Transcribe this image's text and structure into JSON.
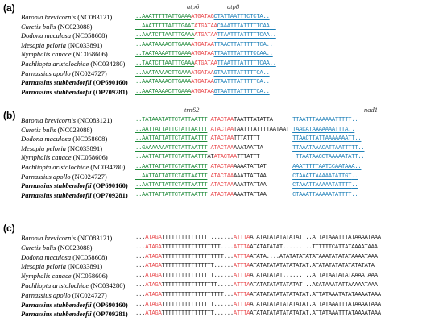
{
  "panels": [
    {
      "label": "(a)",
      "headers": [
        {
          "text": "atp6"
        },
        {
          "text": "atp8"
        }
      ],
      "rows": [
        {
          "genus": "Baronia brevicornis",
          "acc": "(NC083121)",
          "bold": false,
          "seq": [
            {
              "t": "..",
              "c": "g"
            },
            {
              "t": "AAATTTTTATTGAAA",
              "c": "g"
            },
            {
              "t": "ATGATAG",
              "c": "r"
            },
            {
              "t": "CTATTAATTTCTCTA",
              "c": "b"
            },
            {
              "t": "..",
              "c": "b"
            }
          ]
        },
        {
          "genus": "Curetis bulis",
          "acc": "(NC023088)",
          "bold": false,
          "seq": [
            {
              "t": "..",
              "c": "g"
            },
            {
              "t": "AAATTTTTATTTGAAT",
              "c": "g"
            },
            {
              "t": "ATGATAA",
              "c": "r"
            },
            {
              "t": "CAAATTTATTTTTCAA",
              "c": "b"
            },
            {
              "t": "..",
              "c": "b"
            }
          ]
        },
        {
          "genus": "Dodona maculosa",
          "acc": "(NC058608)",
          "bold": false,
          "seq": [
            {
              "t": "..",
              "c": "g"
            },
            {
              "t": "AAATCTTAATTTGAAA",
              "c": "g"
            },
            {
              "t": "ATGATAA",
              "c": "r"
            },
            {
              "t": "TTAATTTATTTTTCAA",
              "c": "b"
            },
            {
              "t": "..",
              "c": "b"
            }
          ]
        },
        {
          "genus": "Mesapia peloria",
          "acc": "(NC033891)",
          "bold": false,
          "seq": [
            {
              "t": "..",
              "c": "g"
            },
            {
              "t": "AAATAAAACTTGAAA",
              "c": "g"
            },
            {
              "t": "ATGATAA",
              "c": "r"
            },
            {
              "t": "TTAACTTATTTTTTCA",
              "c": "b"
            },
            {
              "t": "..",
              "c": "b"
            }
          ]
        },
        {
          "genus": "Nymphalis canace",
          "acc": "(NC058606)",
          "bold": false,
          "seq": [
            {
              "t": "..",
              "c": "g"
            },
            {
              "t": "TAATAAAATTTGAAA",
              "c": "g"
            },
            {
              "t": "ATGATAA",
              "c": "r"
            },
            {
              "t": "TTAATTTATTTTCCAA",
              "c": "b"
            },
            {
              "t": "..",
              "c": "b"
            }
          ]
        },
        {
          "genus": "Pachliopta aristolochiae",
          "acc": "(NC034280)",
          "bold": false,
          "seq": [
            {
              "t": "..",
              "c": "g"
            },
            {
              "t": "TAATCTTAATTTGAAA",
              "c": "g"
            },
            {
              "t": "ATGATAA",
              "c": "r"
            },
            {
              "t": "TTAATTTATTTTTCAA",
              "c": "b"
            },
            {
              "t": "..",
              "c": "b"
            }
          ]
        },
        {
          "genus": "Parnassius apollo",
          "acc": "(NC024727)",
          "bold": false,
          "seq": [
            {
              "t": "..",
              "c": "g"
            },
            {
              "t": "AAATAAAACTTGAAA",
              "c": "g"
            },
            {
              "t": "ATGATAA",
              "c": "r"
            },
            {
              "t": "GTAATTTATTTTTCA",
              "c": "b"
            },
            {
              "t": "..",
              "c": "b"
            }
          ]
        },
        {
          "genus": "Parnassius stubbendorfii",
          "acc": "(OP690160)",
          "bold": true,
          "seq": [
            {
              "t": "..",
              "c": "g"
            },
            {
              "t": "AAATAAAACTTGAAA",
              "c": "g"
            },
            {
              "t": "ATGATAA",
              "c": "r"
            },
            {
              "t": "GTAATTTATTTTTCA",
              "c": "b"
            },
            {
              "t": "..",
              "c": "b"
            }
          ]
        },
        {
          "genus": "Parnassius stubbendorfii",
          "acc": "(OP709281)",
          "bold": true,
          "seq": [
            {
              "t": "..",
              "c": "g"
            },
            {
              "t": "AAATAAAACTTGAAA",
              "c": "g"
            },
            {
              "t": "ATGATAA",
              "c": "r"
            },
            {
              "t": "GTAATTTATTTTTCA",
              "c": "b"
            },
            {
              "t": "..",
              "c": "b"
            }
          ]
        }
      ]
    },
    {
      "label": "(b)",
      "headers": [
        {
          "text": "trnS2"
        },
        {
          "text": "nad1"
        }
      ],
      "rows": [
        {
          "genus": "Baronia brevicornis",
          "acc": "(NC083121)",
          "bold": false,
          "seq": [
            {
              "t": "..",
              "c": "g"
            },
            {
              "t": "TATAAATATTCTATTAATTT",
              "c": "g"
            },
            {
              "t": " ",
              "c": "k"
            },
            {
              "t": "ATACTAA",
              "c": "r"
            },
            {
              "t": "TAATTTATATTA",
              "c": "k"
            },
            {
              "t": "      ",
              "c": "k"
            },
            {
              "t": "TTAATTTAAAAAATTTTT",
              "c": "b"
            },
            {
              "t": "..",
              "c": "b"
            }
          ]
        },
        {
          "genus": "Curetis bulis",
          "acc": "(NC023088)",
          "bold": false,
          "seq": [
            {
              "t": "..",
              "c": "g"
            },
            {
              "t": "AATTATTATTCTATTAATTT",
              "c": "g"
            },
            {
              "t": " ",
              "c": "k"
            },
            {
              "t": "ATACTAA",
              "c": "r"
            },
            {
              "t": "TAATTTATTTTAATAAT",
              "c": "k"
            },
            {
              "t": " ",
              "c": "k"
            },
            {
              "t": "TAACATAAAAAAATTTA",
              "c": "b"
            },
            {
              "t": "..",
              "c": "b"
            }
          ]
        },
        {
          "genus": "Dodona maculosa",
          "acc": "(NC058608)",
          "bold": false,
          "seq": [
            {
              "t": "..",
              "c": "g"
            },
            {
              "t": "AATTATTATTCTATTAATTT",
              "c": "g"
            },
            {
              "t": " ",
              "c": "k"
            },
            {
              "t": "ATACTAA",
              "c": "r"
            },
            {
              "t": "TTTATTTT",
              "c": "k"
            },
            {
              "t": "          ",
              "c": "k"
            },
            {
              "t": "TTAACTTATTAAAAAAATT",
              "c": "b"
            },
            {
              "t": "..",
              "c": "b"
            }
          ]
        },
        {
          "genus": "Mesapia peloria",
          "acc": "(NC033891)",
          "bold": false,
          "seq": [
            {
              "t": "..",
              "c": "g"
            },
            {
              "t": "GAAAAAAATTCTATTAATTT",
              "c": "g"
            },
            {
              "t": " ",
              "c": "k"
            },
            {
              "t": "ATACTAA",
              "c": "r"
            },
            {
              "t": "AAATAATTA",
              "c": "k"
            },
            {
              "t": "         ",
              "c": "k"
            },
            {
              "t": "TTAAATAAACATTAATTTTT",
              "c": "b"
            },
            {
              "t": "..",
              "c": "b"
            }
          ]
        },
        {
          "genus": "Nymphalis canace",
          "acc": "(NC058606)",
          "bold": false,
          "seq": [
            {
              "t": "..",
              "c": "g"
            },
            {
              "t": "AATTATTATTCTATTAATTT",
              "c": "g"
            },
            {
              "t": "AT",
              "c": "k"
            },
            {
              "t": "ATACTAA",
              "c": "r"
            },
            {
              "t": "TTTATTT",
              "c": "k"
            },
            {
              "t": "           ",
              "c": "k"
            },
            {
              "t": "TTAATAACCTAAAAATATT",
              "c": "b"
            },
            {
              "t": "..",
              "c": "b"
            }
          ]
        },
        {
          "genus": "Pachliopta aristolochiae",
          "acc": "(NC034280)",
          "bold": false,
          "seq": [
            {
              "t": "..",
              "c": "g"
            },
            {
              "t": "AATTATTATTCTATTAATTT",
              "c": "g"
            },
            {
              "t": " ",
              "c": "k"
            },
            {
              "t": "ATACTAA",
              "c": "r"
            },
            {
              "t": "AAAATATTAT",
              "c": "k"
            },
            {
              "t": "        ",
              "c": "k"
            },
            {
              "t": "AAATTTTTAATCCAATAAA",
              "c": "b"
            },
            {
              "t": "..",
              "c": "b"
            }
          ]
        },
        {
          "genus": "Parnassius apollo",
          "acc": "(NC024727)",
          "bold": false,
          "seq": [
            {
              "t": "..",
              "c": "g"
            },
            {
              "t": "AATTATTATTCTATTAATTT",
              "c": "g"
            },
            {
              "t": " ",
              "c": "k"
            },
            {
              "t": "ATACTAA",
              "c": "r"
            },
            {
              "t": "AAATTATTAA",
              "c": "k"
            },
            {
              "t": "        ",
              "c": "k"
            },
            {
              "t": "CTAAATTAAAAATATTGT",
              "c": "b"
            },
            {
              "t": "..",
              "c": "b"
            }
          ]
        },
        {
          "genus": "Parnassius stubbendorfii",
          "acc": "(OP690160)",
          "bold": true,
          "seq": [
            {
              "t": "..",
              "c": "g"
            },
            {
              "t": "AATTATTATTCTATTAATTT",
              "c": "g"
            },
            {
              "t": " ",
              "c": "k"
            },
            {
              "t": "ATACTAA",
              "c": "r"
            },
            {
              "t": "AAATTATTAA",
              "c": "k"
            },
            {
              "t": "        ",
              "c": "k"
            },
            {
              "t": "CTAAATTAAAAATATTTT",
              "c": "b"
            },
            {
              "t": "..",
              "c": "b"
            }
          ]
        },
        {
          "genus": "Parnassius stubbendorfii",
          "acc": "(OP709281)",
          "bold": true,
          "seq": [
            {
              "t": "..",
              "c": "g"
            },
            {
              "t": "AATTATTATTCTATTAATTT",
              "c": "g"
            },
            {
              "t": " ",
              "c": "k"
            },
            {
              "t": "ATACTAA",
              "c": "r"
            },
            {
              "t": "AAATTATTAA",
              "c": "k"
            },
            {
              "t": "        ",
              "c": "k"
            },
            {
              "t": "CTAAATTAAAAATATTTT",
              "c": "b"
            },
            {
              "t": "..",
              "c": "b"
            }
          ]
        }
      ]
    },
    {
      "label": "(c)",
      "headers": [],
      "rows": [
        {
          "genus": "Baronia brevicornis",
          "acc": "(NC083121)",
          "bold": false,
          "seq": [
            {
              "t": "...",
              "c": "k"
            },
            {
              "t": "ATAGA",
              "c": "r"
            },
            {
              "t": "TTTTTTTTTTTTTTT.......",
              "c": "k"
            },
            {
              "t": "ATTTA",
              "c": "r"
            },
            {
              "t": "ATATATATATATATAT...",
              "c": "k"
            },
            {
              "t": "ATTATAAATTTATAAAATAAA",
              "c": "k"
            }
          ]
        },
        {
          "genus": "Curetis bulis",
          "acc": "(NC023088)",
          "bold": false,
          "seq": [
            {
              "t": "...",
              "c": "k"
            },
            {
              "t": "ATAGA",
              "c": "r"
            },
            {
              "t": "TTTTTTTTTTTTTTTTTT....",
              "c": "k"
            },
            {
              "t": "ATTTA",
              "c": "r"
            },
            {
              "t": "ATATATATAT.........",
              "c": "k"
            },
            {
              "t": "TTTTTTCATTATAAAATAAA",
              "c": "k"
            }
          ]
        },
        {
          "genus": "Dodona maculosa",
          "acc": "(NC058608)",
          "bold": false,
          "seq": [
            {
              "t": "...",
              "c": "k"
            },
            {
              "t": "ATAGA",
              "c": "r"
            },
            {
              "t": "TTTTTTTTTTTTTTTTTTT...",
              "c": "k"
            },
            {
              "t": "ATTTA",
              "c": "r"
            },
            {
              "t": "ATATA....ATATATATAT",
              "c": "k"
            },
            {
              "t": "ATAAATATATATAAAATAAA",
              "c": "k"
            }
          ]
        },
        {
          "genus": "Mesapia peloria",
          "acc": "(NC033891)",
          "bold": false,
          "seq": [
            {
              "t": "...",
              "c": "k"
            },
            {
              "t": "ATAGA",
              "c": "r"
            },
            {
              "t": "TTTTTTTTTTTTTTTT......",
              "c": "k"
            },
            {
              "t": "ATTTA",
              "c": "r"
            },
            {
              "t": "ATATATATATATATATAT.",
              "c": "k"
            },
            {
              "t": "ATATATATATATATATATA",
              "c": "k"
            }
          ]
        },
        {
          "genus": "Nymphalis canace",
          "acc": "(NC058606)",
          "bold": false,
          "seq": [
            {
              "t": "...",
              "c": "k"
            },
            {
              "t": "ATAGA",
              "c": "r"
            },
            {
              "t": "TTTTTTTTTTTTTTTT......",
              "c": "k"
            },
            {
              "t": "ATTTA",
              "c": "r"
            },
            {
              "t": "ATATATATAT.........",
              "c": "k"
            },
            {
              "t": "ATTATAATATATAAAATAAA",
              "c": "k"
            }
          ]
        },
        {
          "genus": "Pachliopta aristolochiae",
          "acc": "(NC034280)",
          "bold": false,
          "seq": [
            {
              "t": "...",
              "c": "k"
            },
            {
              "t": "ATAGA",
              "c": "r"
            },
            {
              "t": "TTTTTTTTTTTTTTTTT.....",
              "c": "k"
            },
            {
              "t": "ATTTA",
              "c": "r"
            },
            {
              "t": "ATATATATATATATAT...",
              "c": "k"
            },
            {
              "t": "ACATAAATATTAAAAATAAA",
              "c": "k"
            }
          ]
        },
        {
          "genus": "Parnassius apollo",
          "acc": "(NC024727)",
          "bold": false,
          "seq": [
            {
              "t": "...",
              "c": "k"
            },
            {
              "t": "ATAGA",
              "c": "r"
            },
            {
              "t": "TTTTTTTTTTTTTTTTTTT...",
              "c": "k"
            },
            {
              "t": "ATTTA",
              "c": "r"
            },
            {
              "t": "ATATATATATATATATAT.",
              "c": "k"
            },
            {
              "t": "ATTATAAATATATAAAATAAA",
              "c": "k"
            }
          ]
        },
        {
          "genus": "Parnassius stubbendorfii",
          "acc": "(OP690160)",
          "bold": true,
          "seq": [
            {
              "t": "...",
              "c": "k"
            },
            {
              "t": "ATAGA",
              "c": "r"
            },
            {
              "t": "TTTTTTTTTTTTTTTT......",
              "c": "k"
            },
            {
              "t": "ATTTA",
              "c": "r"
            },
            {
              "t": "ATATATATATATATATAT.",
              "c": "k"
            },
            {
              "t": "ATTATAAATTTATAAAATAAA",
              "c": "k"
            }
          ]
        },
        {
          "genus": "Parnassius stubbendorfii",
          "acc": "(OP709281)",
          "bold": true,
          "seq": [
            {
              "t": "...",
              "c": "k"
            },
            {
              "t": "ATAGA",
              "c": "r"
            },
            {
              "t": "TTTTTTTTTTTTTTTT......",
              "c": "k"
            },
            {
              "t": "ATTTA",
              "c": "r"
            },
            {
              "t": "ATATATATATATATATAT.",
              "c": "k"
            },
            {
              "t": "ATTATAAATTTATAAAATAAA",
              "c": "k"
            }
          ]
        }
      ]
    }
  ],
  "colors": {
    "green": "#1f8a3a",
    "red": "#e8474a",
    "blue": "#1c7fb8",
    "black": "#222222"
  }
}
